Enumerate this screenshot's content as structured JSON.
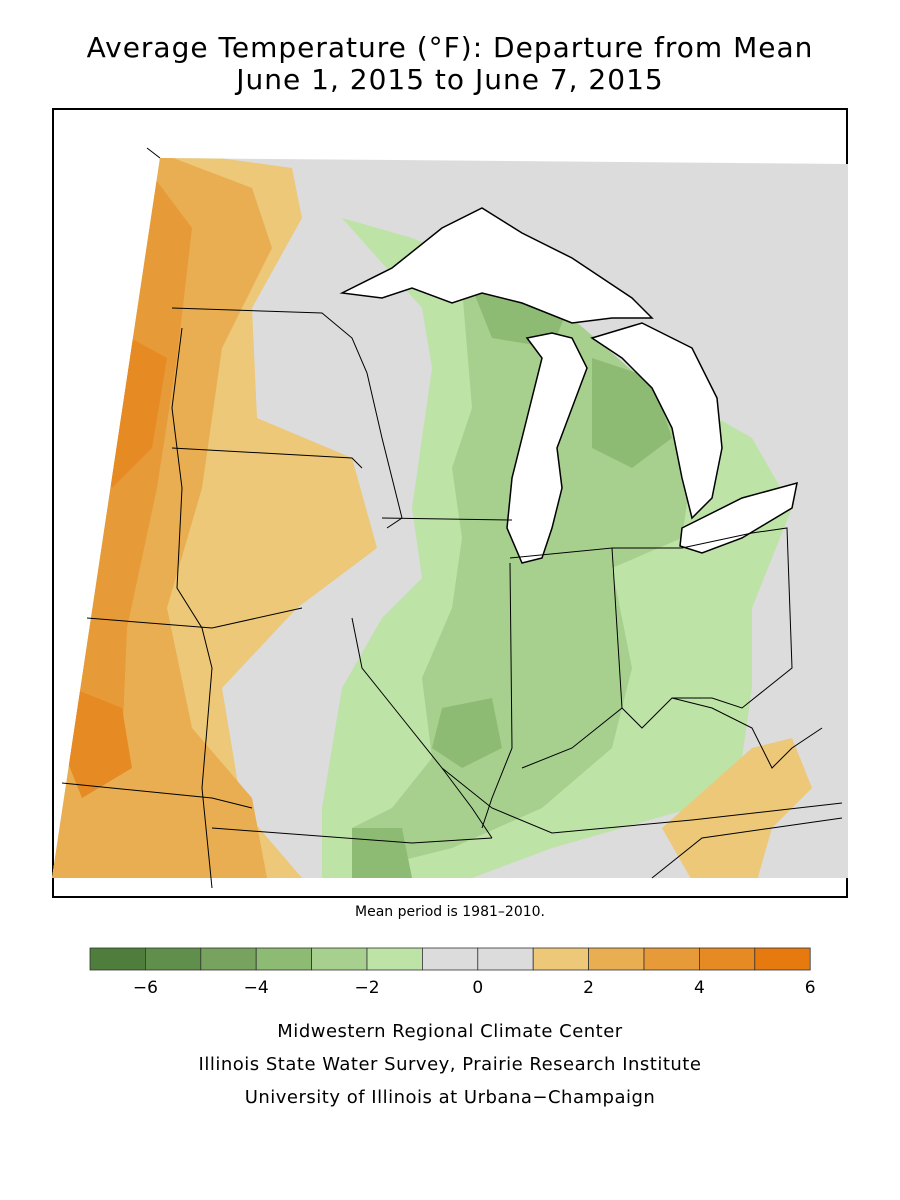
{
  "title": {
    "line1": "Average Temperature (°F): Departure from Mean",
    "line2": "June 1, 2015 to June 7, 2015"
  },
  "note": "Mean period is 1981–2010.",
  "legend": {
    "colors": [
      "#4e7d3c",
      "#5f8f4a",
      "#77a35e",
      "#8ebb74",
      "#a7d08f",
      "#bde3a6",
      "#dcdcdc",
      "#dcdcdc",
      "#ecc878",
      "#e9ae52",
      "#e79a38",
      "#e68a23",
      "#e67a0e"
    ],
    "ticks": [
      {
        "value": -6,
        "label": "−6"
      },
      {
        "value": -4,
        "label": "−4"
      },
      {
        "value": -2,
        "label": "−2"
      },
      {
        "value": 0,
        "label": "0"
      },
      {
        "value": 2,
        "label": "2"
      },
      {
        "value": 4,
        "label": "4"
      },
      {
        "value": 6,
        "label": "6"
      }
    ]
  },
  "credits": {
    "line1": "Midwestern Regional Climate Center",
    "line2": "Illinois State Water Survey, Prairie Research Institute",
    "line3": "University of Illinois at Urbana−Champaign"
  }
}
